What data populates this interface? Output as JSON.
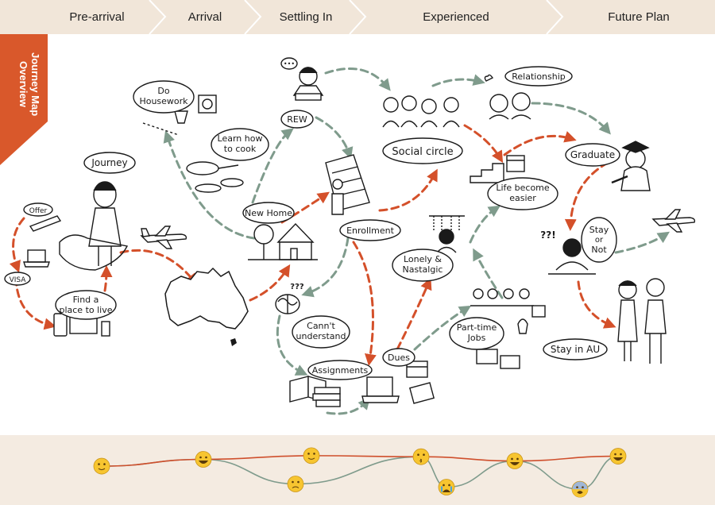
{
  "header": {
    "stages": [
      "Pre-arrival",
      "Arrival",
      "Settling In",
      "Experienced",
      "Future Plan"
    ]
  },
  "side_label": "Journey Map Overview",
  "labels": {
    "offer": "Offer",
    "journey": "Journey",
    "visa": "VISA",
    "find_place": [
      "Find a",
      "place to live"
    ],
    "do_housework": [
      "Do",
      "Housework"
    ],
    "learn_cook": [
      "Learn how",
      "to cook"
    ],
    "new_home": "New Home",
    "rew": "REW",
    "enrollment": "Enrollment",
    "cant_understand": [
      "Cann't",
      "understand"
    ],
    "assignments": "Assignments",
    "dues": "Dues",
    "social_circle": "Social circle",
    "relationship": "Relationship",
    "life_easier": [
      "Life become",
      "easier"
    ],
    "lonely": [
      "Lonely &",
      "Nastalgic"
    ],
    "part_time": [
      "Part-time",
      "Jobs"
    ],
    "graduate": "Graduate",
    "stay_or_not": [
      "Stay",
      "or",
      "Not"
    ],
    "stay_in_au": "Stay in AU",
    "dots": "•••",
    "question_marks": "???",
    "question_excl": "??!"
  },
  "colors": {
    "header_bg": "#f1e6d9",
    "header_divider": "#ffffff",
    "corner": "#d9582b",
    "arrow_red": "#d4502a",
    "arrow_green": "#7f9b8c",
    "mood_bg": "#f4ebe1",
    "mood_red_line": "#cf4f2c",
    "mood_green_line": "#7f9b8c",
    "emoji_face": "#f7c530",
    "ink": "#1a1a1a",
    "australia_fill": "#ffffff"
  },
  "mood_chart": {
    "icons": [
      "smile-emoji",
      "grin-emoji",
      "frown-emoji",
      "smile-emoji",
      "kissing-emoji",
      "sob-emoji",
      "grin-emoji",
      "fearful-emoji",
      "laugh-emoji"
    ],
    "upper_track": [
      0.62,
      0.75,
      0.82,
      0.8,
      0.72,
      0.81
    ],
    "lower_track": [
      0.62,
      0.75,
      0.28,
      0.8,
      0.22,
      0.72,
      0.18,
      0.81
    ]
  }
}
